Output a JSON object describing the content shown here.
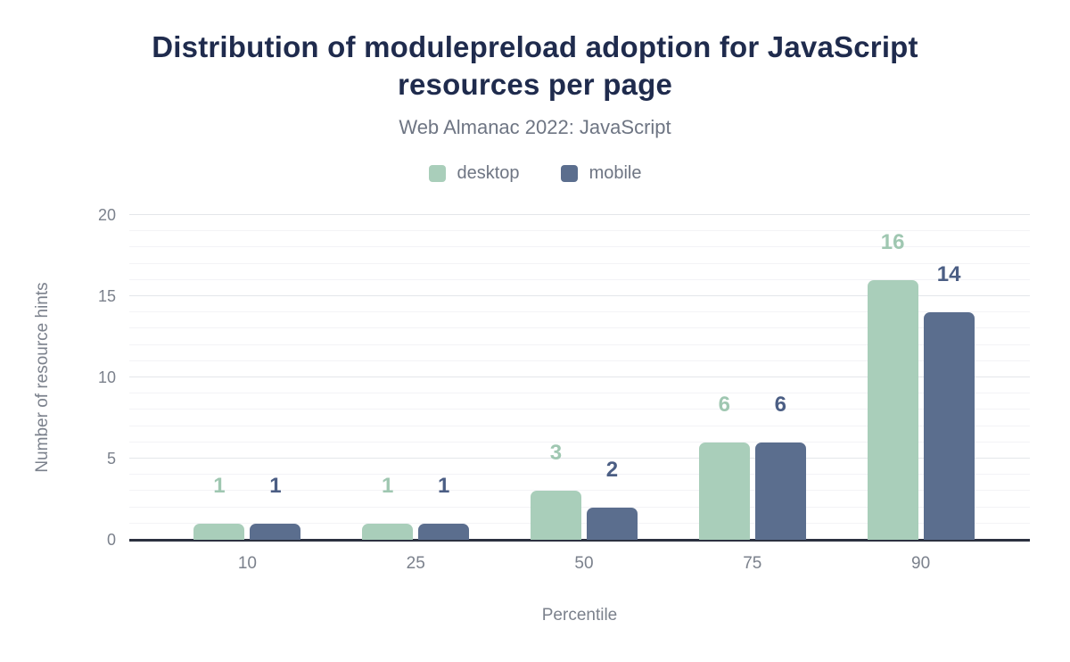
{
  "chart_data": {
    "type": "bar",
    "title": "Distribution of modulepreload adoption for JavaScript resources per page",
    "subtitle": "Web Almanac 2022: JavaScript",
    "categories": [
      "10",
      "25",
      "50",
      "75",
      "90"
    ],
    "series": [
      {
        "name": "desktop",
        "color": "#a9ceba",
        "label_color": "#9fc7b1",
        "values": [
          1,
          1,
          3,
          6,
          16
        ]
      },
      {
        "name": "mobile",
        "color": "#5b6e8e",
        "label_color": "#4b5e84",
        "values": [
          1,
          1,
          2,
          6,
          14
        ]
      }
    ],
    "xlabel": "Percentile",
    "ylabel": "Number of resource hints",
    "ylim": [
      0,
      20
    ],
    "yticks": [
      0,
      5,
      10,
      15,
      20
    ],
    "grid": {
      "minor_step": 1,
      "major_step": 5
    },
    "legend_position": "top",
    "colors": {
      "title_text": "#1f2b4d",
      "muted_text": "#6e7583",
      "axis_text": "#7b818c",
      "axis_line": "#2c3140",
      "gridline_minor": "#f3f3f6",
      "gridline_major": "#e4e6ea",
      "background": "#ffffff"
    }
  }
}
